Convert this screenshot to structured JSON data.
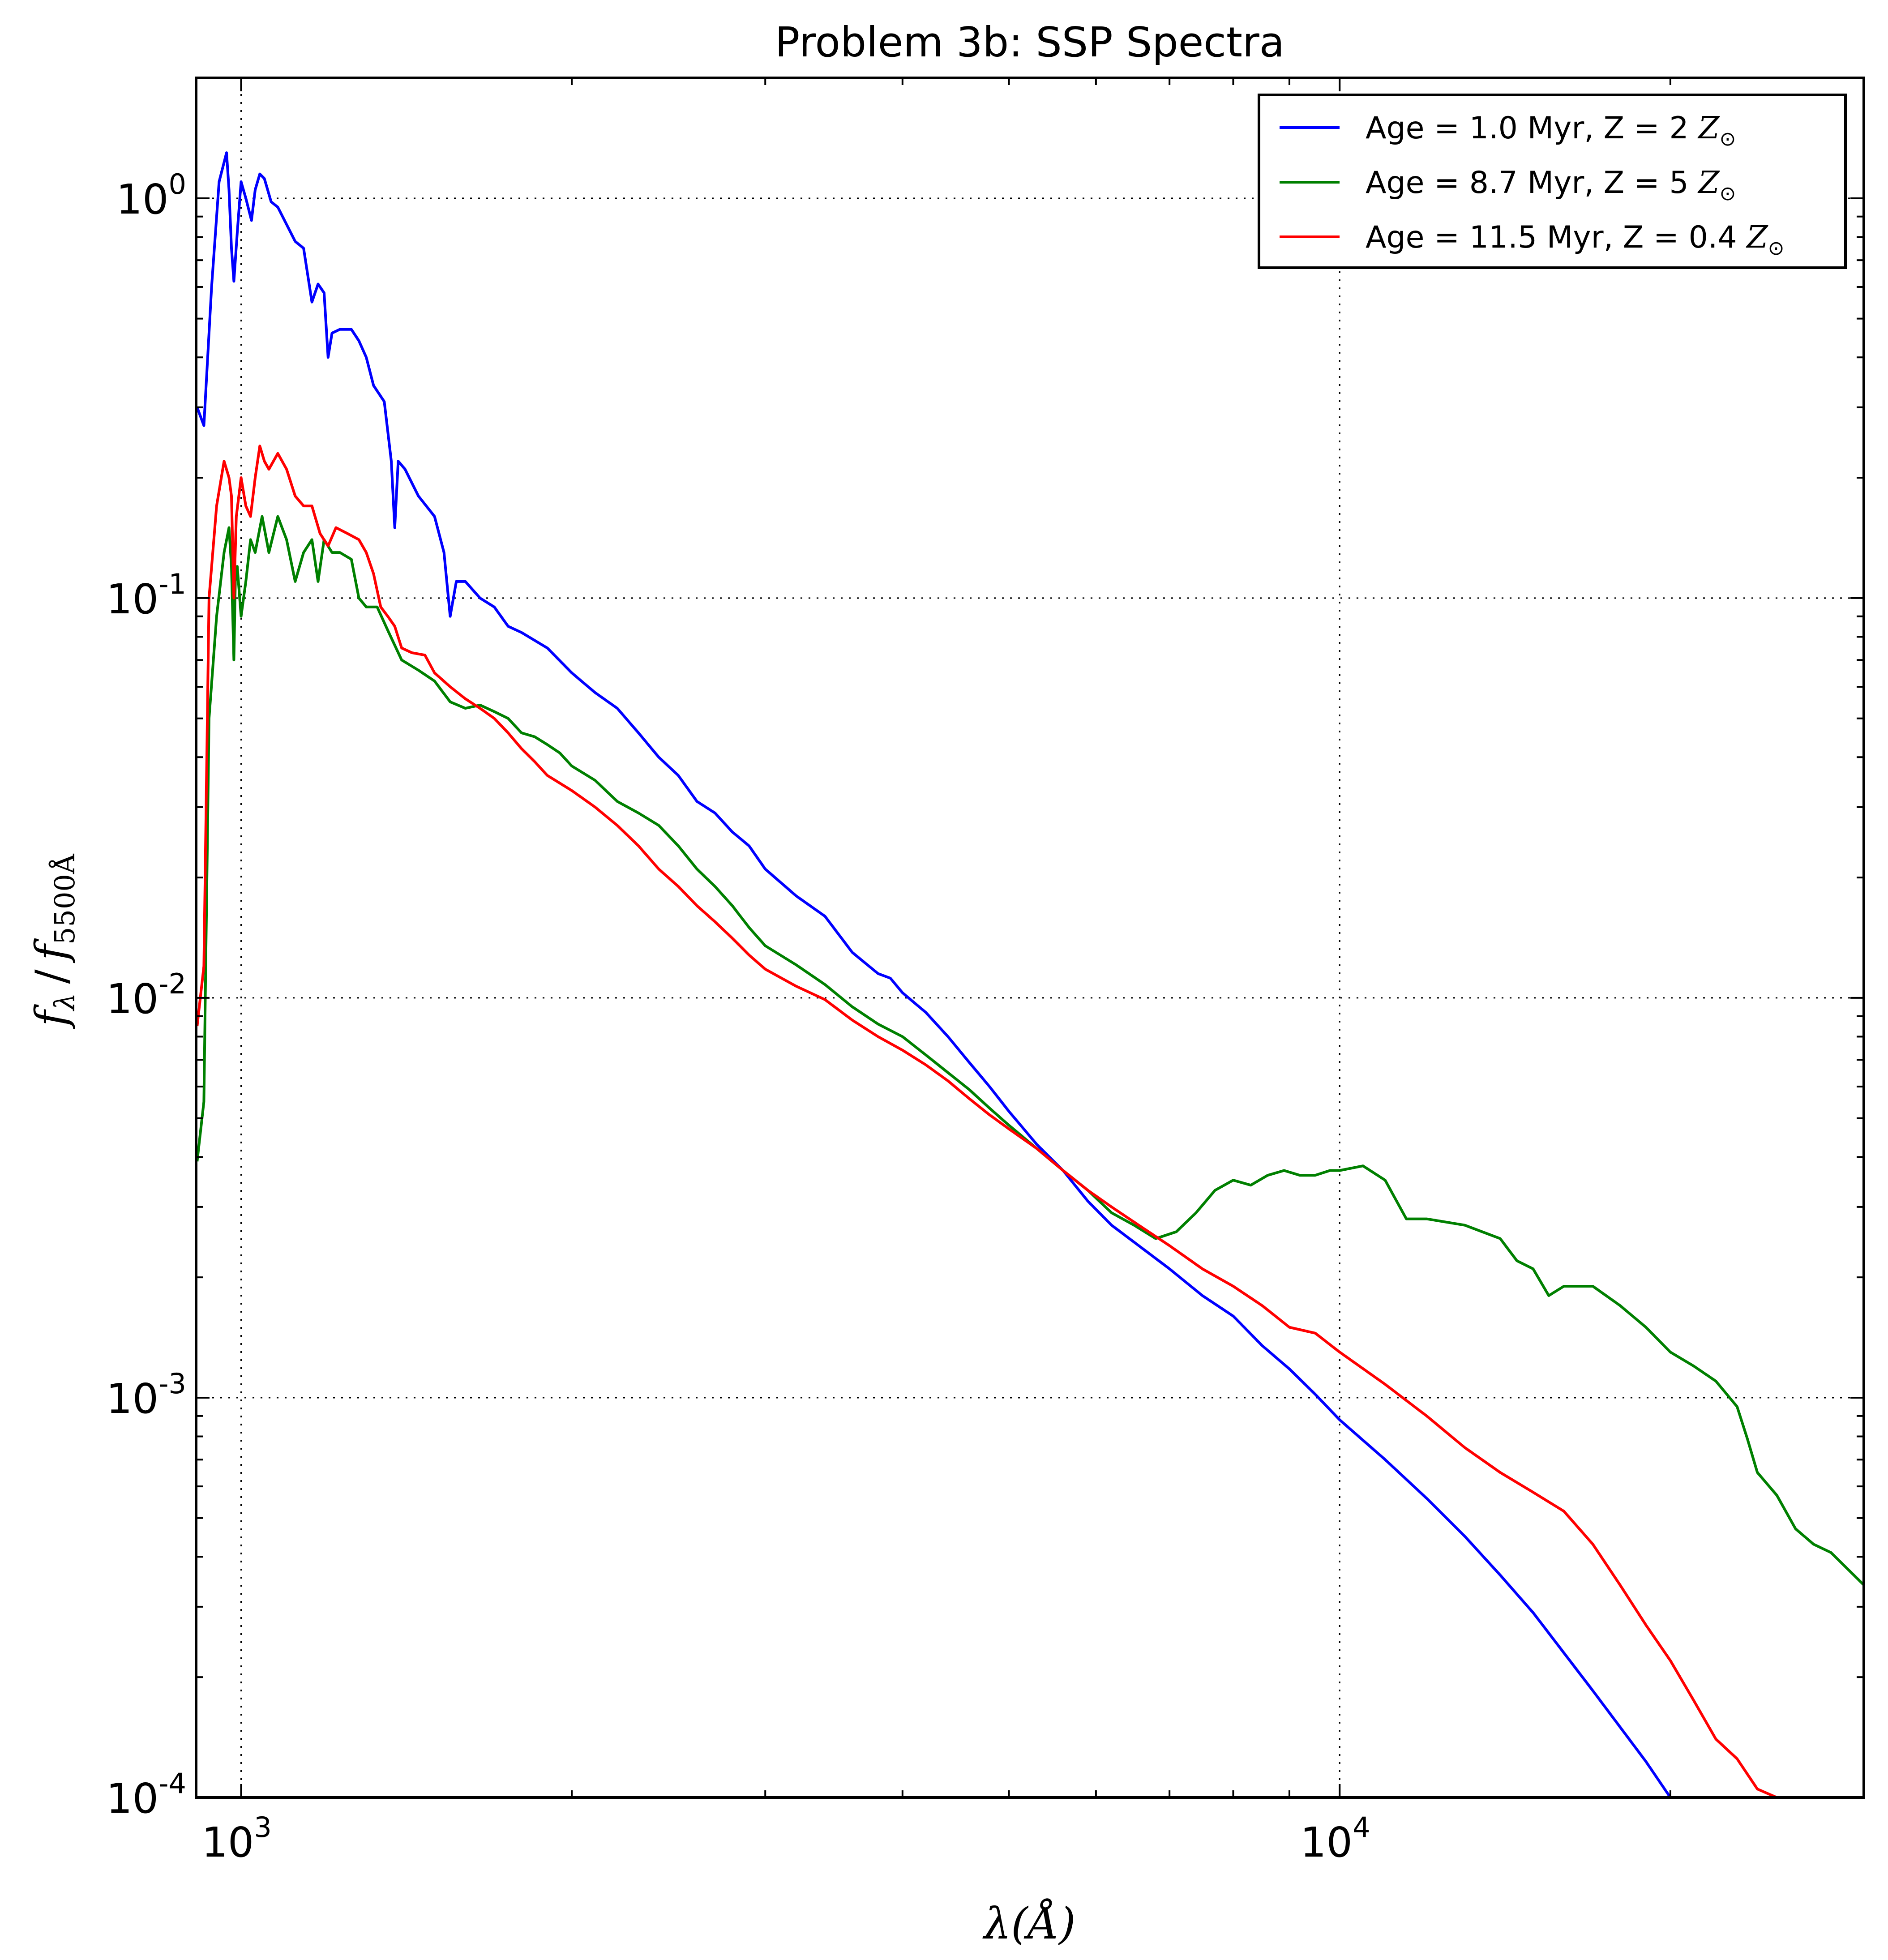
{
  "chart_data": {
    "type": "line",
    "title": "Problem 3b: SSP Spectra",
    "xlabel": "λ(Å)",
    "ylabel": "f_λ / f_5500Å",
    "ylabel_parts": {
      "f": "f",
      "lambda": "λ",
      "slash": "/",
      "sub2": "5500Å"
    },
    "x_scale": "log",
    "y_scale": "log",
    "xlim": [
      910,
      30000
    ],
    "ylim": [
      0.0001,
      2.0
    ],
    "x_ticks": [
      {
        "base": "10",
        "exp": "3",
        "value": 1000
      },
      {
        "base": "10",
        "exp": "4",
        "value": 10000
      }
    ],
    "y_ticks": [
      {
        "base": "10",
        "exp": "0",
        "value": 1
      },
      {
        "base": "10",
        "exp": "-1",
        "value": 0.1
      },
      {
        "base": "10",
        "exp": "-2",
        "value": 0.01
      },
      {
        "base": "10",
        "exp": "-3",
        "value": 0.001
      },
      {
        "base": "10",
        "exp": "-4",
        "value": 0.0001
      }
    ],
    "grid": true,
    "legend_position": "top-right",
    "series": [
      {
        "name": "Age = 1.0 Myr, Z = 2 Z⊙",
        "name_parts": {
          "text": "Age = 1.0 Myr, Z = 2 ",
          "z": "Z",
          "sun": "⊙"
        },
        "color": "#0000ff",
        "points": [
          [
            912,
            0.3
          ],
          [
            925,
            0.27
          ],
          [
            940,
            0.6
          ],
          [
            955,
            1.1
          ],
          [
            970,
            1.3
          ],
          [
            975,
            1.05
          ],
          [
            980,
            0.75
          ],
          [
            985,
            0.62
          ],
          [
            992,
            0.82
          ],
          [
            1000,
            1.1
          ],
          [
            1010,
            1.0
          ],
          [
            1022,
            0.88
          ],
          [
            1030,
            1.05
          ],
          [
            1040,
            1.15
          ],
          [
            1050,
            1.12
          ],
          [
            1065,
            0.98
          ],
          [
            1080,
            0.95
          ],
          [
            1100,
            0.86
          ],
          [
            1120,
            0.78
          ],
          [
            1140,
            0.75
          ],
          [
            1160,
            0.55
          ],
          [
            1175,
            0.61
          ],
          [
            1190,
            0.58
          ],
          [
            1200,
            0.4
          ],
          [
            1210,
            0.46
          ],
          [
            1230,
            0.47
          ],
          [
            1260,
            0.47
          ],
          [
            1280,
            0.44
          ],
          [
            1300,
            0.4
          ],
          [
            1320,
            0.34
          ],
          [
            1350,
            0.31
          ],
          [
            1370,
            0.22
          ],
          [
            1380,
            0.15
          ],
          [
            1390,
            0.22
          ],
          [
            1410,
            0.21
          ],
          [
            1450,
            0.18
          ],
          [
            1500,
            0.16
          ],
          [
            1530,
            0.13
          ],
          [
            1550,
            0.09
          ],
          [
            1570,
            0.11
          ],
          [
            1600,
            0.11
          ],
          [
            1650,
            0.1
          ],
          [
            1700,
            0.095
          ],
          [
            1750,
            0.085
          ],
          [
            1800,
            0.082
          ],
          [
            1900,
            0.075
          ],
          [
            2000,
            0.065
          ],
          [
            2100,
            0.058
          ],
          [
            2200,
            0.053
          ],
          [
            2300,
            0.046
          ],
          [
            2400,
            0.04
          ],
          [
            2500,
            0.036
          ],
          [
            2600,
            0.031
          ],
          [
            2700,
            0.029
          ],
          [
            2800,
            0.026
          ],
          [
            2900,
            0.024
          ],
          [
            3000,
            0.021
          ],
          [
            3200,
            0.018
          ],
          [
            3400,
            0.016
          ],
          [
            3600,
            0.013
          ],
          [
            3800,
            0.0115
          ],
          [
            3900,
            0.0112
          ],
          [
            4000,
            0.0103
          ],
          [
            4200,
            0.0092
          ],
          [
            4400,
            0.008
          ],
          [
            4600,
            0.0069
          ],
          [
            4800,
            0.006
          ],
          [
            5000,
            0.0052
          ],
          [
            5300,
            0.0043
          ],
          [
            5600,
            0.0037
          ],
          [
            5900,
            0.0031
          ],
          [
            6200,
            0.0027
          ],
          [
            6563,
            0.0024
          ],
          [
            7000,
            0.0021
          ],
          [
            7500,
            0.0018
          ],
          [
            8000,
            0.0016
          ],
          [
            8500,
            0.00135
          ],
          [
            9000,
            0.00118
          ],
          [
            9500,
            0.00102
          ],
          [
            10000,
            0.00088
          ],
          [
            11000,
            0.0007
          ],
          [
            12000,
            0.00056
          ],
          [
            13000,
            0.00045
          ],
          [
            14000,
            0.00036
          ],
          [
            15000,
            0.00029
          ],
          [
            16000,
            0.00023
          ],
          [
            17000,
            0.000185
          ],
          [
            18000,
            0.00015
          ],
          [
            19000,
            0.000123
          ],
          [
            20000,
            0.0001
          ]
        ]
      },
      {
        "name": "Age = 8.7 Myr, Z = 5 Z⊙",
        "name_parts": {
          "text": "Age = 8.7 Myr, Z = 5 ",
          "z": "Z",
          "sun": "⊙"
        },
        "color": "#008000",
        "points": [
          [
            912,
            0.0039
          ],
          [
            925,
            0.0055
          ],
          [
            935,
            0.05
          ],
          [
            950,
            0.09
          ],
          [
            965,
            0.13
          ],
          [
            975,
            0.15
          ],
          [
            980,
            0.12
          ],
          [
            985,
            0.07
          ],
          [
            988,
            0.11
          ],
          [
            992,
            0.12
          ],
          [
            1000,
            0.09
          ],
          [
            1010,
            0.11
          ],
          [
            1020,
            0.14
          ],
          [
            1030,
            0.13
          ],
          [
            1045,
            0.16
          ],
          [
            1060,
            0.13
          ],
          [
            1080,
            0.16
          ],
          [
            1100,
            0.14
          ],
          [
            1120,
            0.11
          ],
          [
            1140,
            0.13
          ],
          [
            1160,
            0.14
          ],
          [
            1175,
            0.11
          ],
          [
            1190,
            0.14
          ],
          [
            1210,
            0.13
          ],
          [
            1230,
            0.13
          ],
          [
            1260,
            0.125
          ],
          [
            1280,
            0.1
          ],
          [
            1300,
            0.095
          ],
          [
            1330,
            0.095
          ],
          [
            1360,
            0.083
          ],
          [
            1400,
            0.07
          ],
          [
            1450,
            0.066
          ],
          [
            1500,
            0.062
          ],
          [
            1550,
            0.055
          ],
          [
            1600,
            0.053
          ],
          [
            1650,
            0.054
          ],
          [
            1700,
            0.052
          ],
          [
            1750,
            0.05
          ],
          [
            1800,
            0.046
          ],
          [
            1850,
            0.045
          ],
          [
            1900,
            0.043
          ],
          [
            1950,
            0.041
          ],
          [
            2000,
            0.038
          ],
          [
            2100,
            0.035
          ],
          [
            2200,
            0.031
          ],
          [
            2300,
            0.029
          ],
          [
            2400,
            0.027
          ],
          [
            2500,
            0.024
          ],
          [
            2600,
            0.021
          ],
          [
            2700,
            0.019
          ],
          [
            2800,
            0.017
          ],
          [
            2900,
            0.015
          ],
          [
            3000,
            0.0135
          ],
          [
            3200,
            0.0121
          ],
          [
            3400,
            0.0108
          ],
          [
            3600,
            0.0095
          ],
          [
            3800,
            0.0086
          ],
          [
            4000,
            0.008
          ],
          [
            4200,
            0.0072
          ],
          [
            4400,
            0.0065
          ],
          [
            4600,
            0.0059
          ],
          [
            4800,
            0.0053
          ],
          [
            5000,
            0.0048
          ],
          [
            5300,
            0.0042
          ],
          [
            5600,
            0.0037
          ],
          [
            5900,
            0.0033
          ],
          [
            6200,
            0.0029
          ],
          [
            6500,
            0.0027
          ],
          [
            6800,
            0.0025
          ],
          [
            7100,
            0.0026
          ],
          [
            7400,
            0.0029
          ],
          [
            7700,
            0.0033
          ],
          [
            8000,
            0.0035
          ],
          [
            8300,
            0.0034
          ],
          [
            8600,
            0.0036
          ],
          [
            8900,
            0.0037
          ],
          [
            9200,
            0.0036
          ],
          [
            9500,
            0.0036
          ],
          [
            9800,
            0.0037
          ],
          [
            10000,
            0.0037
          ],
          [
            10500,
            0.0038
          ],
          [
            11000,
            0.0035
          ],
          [
            11500,
            0.0028
          ],
          [
            12000,
            0.0028
          ],
          [
            13000,
            0.0027
          ],
          [
            14000,
            0.0025
          ],
          [
            14500,
            0.0022
          ],
          [
            15000,
            0.0021
          ],
          [
            15500,
            0.0018
          ],
          [
            16000,
            0.0019
          ],
          [
            17000,
            0.0019
          ],
          [
            18000,
            0.0017
          ],
          [
            19000,
            0.0015
          ],
          [
            20000,
            0.0013
          ],
          [
            21000,
            0.0012
          ],
          [
            22000,
            0.0011
          ],
          [
            23000,
            0.00095
          ],
          [
            23500,
            0.00079
          ],
          [
            24000,
            0.00065
          ],
          [
            25000,
            0.00057
          ],
          [
            26000,
            0.00047
          ],
          [
            27000,
            0.00043
          ],
          [
            28000,
            0.00041
          ],
          [
            30000,
            0.00034
          ]
        ]
      },
      {
        "name": "Age = 11.5 Myr, Z = 0.4 Z⊙",
        "name_parts": {
          "text": "Age = 11.5 Myr, Z = 0.4 ",
          "z": "Z",
          "sun": "⊙"
        },
        "color": "#ff0000",
        "points": [
          [
            912,
            0.0085
          ],
          [
            925,
            0.012
          ],
          [
            935,
            0.1
          ],
          [
            950,
            0.17
          ],
          [
            965,
            0.22
          ],
          [
            975,
            0.2
          ],
          [
            980,
            0.18
          ],
          [
            985,
            0.1
          ],
          [
            990,
            0.16
          ],
          [
            1000,
            0.2
          ],
          [
            1010,
            0.17
          ],
          [
            1020,
            0.16
          ],
          [
            1030,
            0.2
          ],
          [
            1040,
            0.24
          ],
          [
            1050,
            0.22
          ],
          [
            1060,
            0.21
          ],
          [
            1080,
            0.23
          ],
          [
            1100,
            0.21
          ],
          [
            1120,
            0.18
          ],
          [
            1140,
            0.17
          ],
          [
            1160,
            0.17
          ],
          [
            1180,
            0.145
          ],
          [
            1200,
            0.135
          ],
          [
            1220,
            0.15
          ],
          [
            1250,
            0.145
          ],
          [
            1280,
            0.14
          ],
          [
            1300,
            0.13
          ],
          [
            1320,
            0.115
          ],
          [
            1340,
            0.095
          ],
          [
            1360,
            0.09
          ],
          [
            1380,
            0.085
          ],
          [
            1400,
            0.075
          ],
          [
            1430,
            0.073
          ],
          [
            1470,
            0.072
          ],
          [
            1500,
            0.065
          ],
          [
            1550,
            0.06
          ],
          [
            1600,
            0.056
          ],
          [
            1650,
            0.053
          ],
          [
            1700,
            0.05
          ],
          [
            1750,
            0.046
          ],
          [
            1800,
            0.042
          ],
          [
            1850,
            0.039
          ],
          [
            1900,
            0.036
          ],
          [
            2000,
            0.033
          ],
          [
            2100,
            0.03
          ],
          [
            2200,
            0.027
          ],
          [
            2300,
            0.024
          ],
          [
            2400,
            0.021
          ],
          [
            2500,
            0.019
          ],
          [
            2600,
            0.017
          ],
          [
            2700,
            0.0155
          ],
          [
            2800,
            0.0141
          ],
          [
            2900,
            0.0128
          ],
          [
            3000,
            0.0118
          ],
          [
            3200,
            0.0107
          ],
          [
            3400,
            0.0099
          ],
          [
            3600,
            0.0088
          ],
          [
            3800,
            0.008
          ],
          [
            4000,
            0.0074
          ],
          [
            4200,
            0.0068
          ],
          [
            4400,
            0.0062
          ],
          [
            4600,
            0.0056
          ],
          [
            4800,
            0.0051
          ],
          [
            5000,
            0.0047
          ],
          [
            5300,
            0.0042
          ],
          [
            5600,
            0.0037
          ],
          [
            5900,
            0.0033
          ],
          [
            6200,
            0.003
          ],
          [
            6563,
            0.0027
          ],
          [
            7000,
            0.0024
          ],
          [
            7500,
            0.0021
          ],
          [
            8000,
            0.0019
          ],
          [
            8500,
            0.0017
          ],
          [
            9000,
            0.0015
          ],
          [
            9500,
            0.00145
          ],
          [
            10000,
            0.0013
          ],
          [
            11000,
            0.00108
          ],
          [
            12000,
            0.0009
          ],
          [
            13000,
            0.00075
          ],
          [
            14000,
            0.00065
          ],
          [
            15000,
            0.00058
          ],
          [
            16000,
            0.00052
          ],
          [
            17000,
            0.00043
          ],
          [
            18000,
            0.00034
          ],
          [
            19000,
            0.00027
          ],
          [
            20000,
            0.00022
          ],
          [
            21000,
            0.000175
          ],
          [
            22000,
            0.00014
          ],
          [
            23000,
            0.000125
          ],
          [
            24000,
            0.000105
          ],
          [
            25000,
            0.0001
          ]
        ]
      }
    ]
  }
}
